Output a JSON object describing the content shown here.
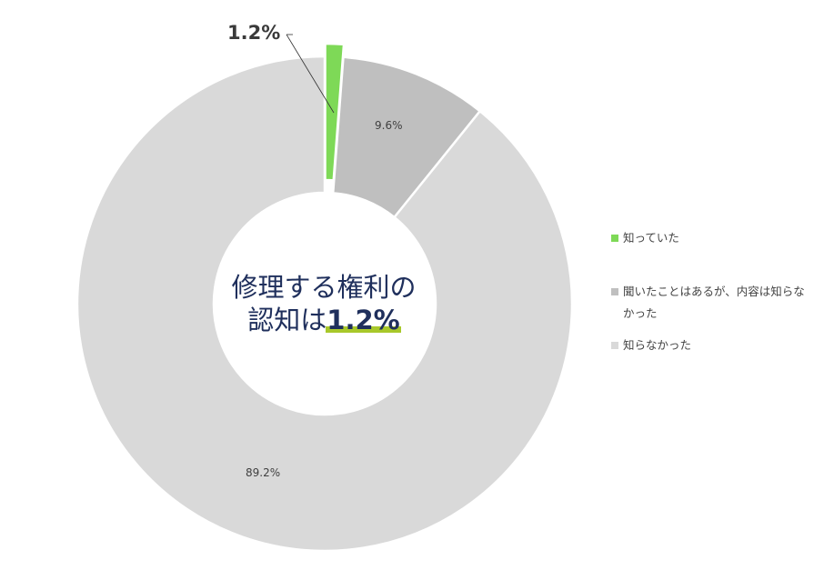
{
  "chart_data": {
    "type": "pie",
    "variant": "donut",
    "title": "",
    "categories": [
      "知っていた",
      "聞いたことはあるが、内容は知らなかった",
      "知らなかった"
    ],
    "values": [
      1.2,
      9.6,
      89.2
    ],
    "unit": "%",
    "data_labels": [
      "1.2%",
      "9.6%",
      "89.2%"
    ],
    "colors": [
      "#7ed957",
      "#bfbfbf",
      "#d9d9d9"
    ],
    "exploded_slice_index": 0,
    "highlight_color": "#a8c82a",
    "legend_position": "right",
    "center_annotation": {
      "line1": "修理する権利の",
      "line2_prefix": "認知は",
      "line2_value": "1.2%"
    }
  }
}
